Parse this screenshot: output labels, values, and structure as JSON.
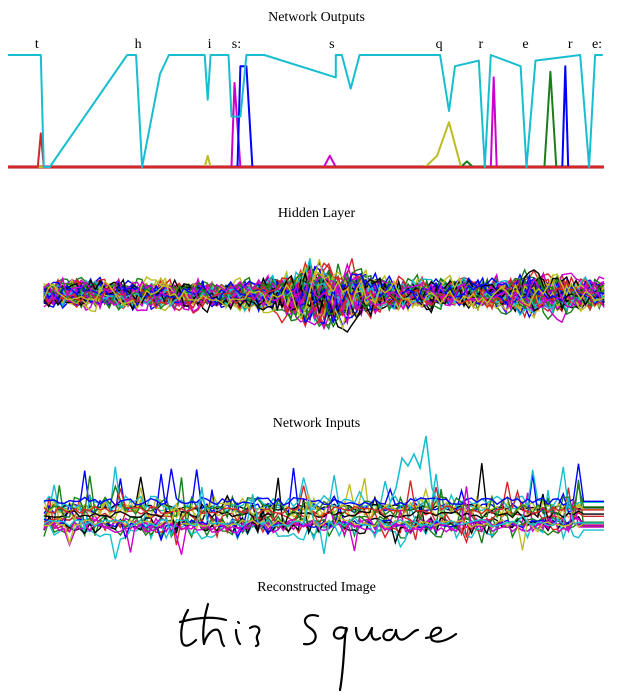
{
  "chart_data": [
    {
      "type": "line",
      "title": "Network Outputs",
      "xlabel": "",
      "ylabel": "",
      "ylim": [
        0,
        1
      ],
      "grid": false,
      "legend": "none",
      "annotations": [
        "t",
        "h",
        "i",
        "s:",
        "s",
        "q",
        "r",
        "e",
        "r",
        "e:"
      ],
      "annotation_x": [
        0.055,
        0.225,
        0.345,
        0.39,
        0.55,
        0.73,
        0.8,
        0.875,
        0.95,
        0.995
      ],
      "series": [
        {
          "color": "#17becf",
          "x": [
            0,
            0.055,
            0.06,
            0.07,
            0.2,
            0.215,
            0.225,
            0.255,
            0.27,
            0.33,
            0.335,
            0.34,
            0.37,
            0.375,
            0.39,
            0.4,
            0.42,
            0.43,
            0.55,
            0.55,
            0.56,
            0.575,
            0.59,
            0.725,
            0.74,
            0.75,
            0.79,
            0.8,
            0.81,
            0.86,
            0.87,
            0.885,
            0.96,
            0.975,
            0.985,
            0.998
          ],
          "y": [
            1,
            1,
            0,
            0,
            1,
            1,
            0,
            0.83,
            1,
            1,
            0.6,
            1,
            1,
            0.45,
            0.45,
            1,
            1,
            1,
            0.8,
            1,
            1,
            0.7,
            1,
            1,
            0.5,
            0.9,
            0.95,
            0,
            1,
            0.9,
            0,
            0.95,
            1,
            0,
            1,
            1
          ]
        },
        {
          "color": "#d62728",
          "x": [
            0,
            0.05,
            0.055,
            0.06,
            1
          ],
          "y": [
            0,
            0,
            0.3,
            0,
            0
          ]
        },
        {
          "color": "#bcbd22",
          "x": [
            0,
            0.33,
            0.335,
            0.34,
            0.7,
            0.72,
            0.74,
            0.76,
            1
          ],
          "y": [
            0,
            0,
            0.1,
            0,
            0,
            0.1,
            0.4,
            0,
            0
          ]
        },
        {
          "color": "#0000ff",
          "x": [
            0,
            0.385,
            0.39,
            0.4,
            0.41,
            0.93,
            0.935,
            0.94,
            1
          ],
          "y": [
            0,
            0,
            0.9,
            0.9,
            0,
            0,
            0.9,
            0,
            0
          ]
        },
        {
          "color": "#cc00cc",
          "x": [
            0,
            0.375,
            0.38,
            0.39,
            0.53,
            0.54,
            0.55,
            0.81,
            0.815,
            0.82,
            1
          ],
          "y": [
            0,
            0,
            0.75,
            0,
            0,
            0.1,
            0,
            0,
            0.8,
            0,
            0
          ]
        },
        {
          "color": "#1a7f1a",
          "x": [
            0,
            0.76,
            0.77,
            0.78,
            0.9,
            0.91,
            0.92,
            1
          ],
          "y": [
            0,
            0,
            0.05,
            0,
            0,
            0.85,
            0,
            0
          ]
        },
        {
          "color": "#a01818",
          "x": [
            0,
            1
          ],
          "y": [
            0,
            0
          ]
        }
      ]
    },
    {
      "type": "line",
      "title": "Hidden Layer",
      "xlabel": "",
      "ylabel": "",
      "ylim": [
        -1,
        1
      ],
      "grid": false,
      "legend": "none",
      "series_count": 70,
      "series_colors": [
        "#17becf",
        "#000000",
        "#1a7f1a",
        "#d62728",
        "#0000ff",
        "#cc00cc",
        "#bcbd22"
      ]
    },
    {
      "type": "line",
      "title": "Network Inputs",
      "xlabel": "",
      "ylabel": "",
      "ylim": [
        -1,
        1
      ],
      "grid": false,
      "legend": "none",
      "series_count": 22,
      "series_colors": [
        "#17becf",
        "#000000",
        "#1a7f1a",
        "#d62728",
        "#0000ff",
        "#cc00cc",
        "#bcbd22"
      ]
    },
    {
      "type": "line",
      "title": "Reconstructed Image",
      "xlabel": "",
      "ylabel": "",
      "grid": false,
      "legend": "none",
      "image_text": "this square",
      "ink_color": "#000000"
    }
  ]
}
